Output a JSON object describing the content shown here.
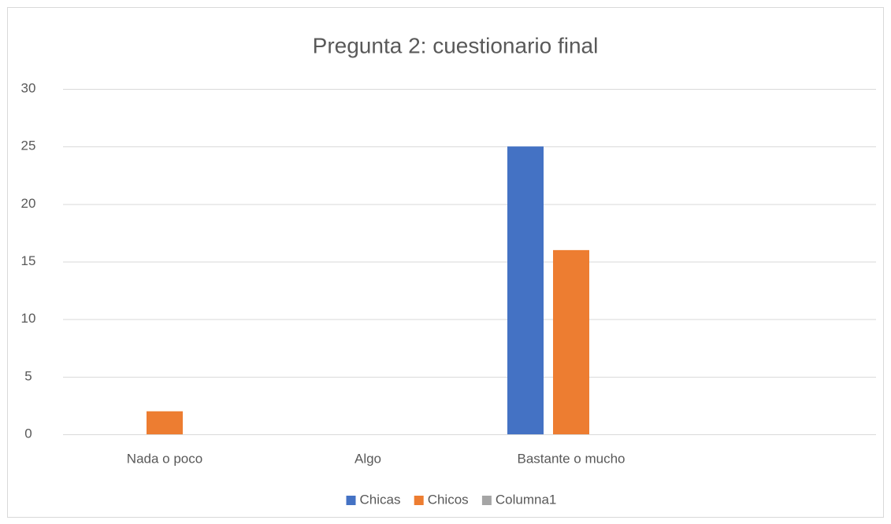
{
  "chart_data": {
    "type": "bar",
    "title": "Pregunta 2: cuestionario final",
    "categories": [
      "Nada o poco",
      "Algo",
      "Bastante o mucho",
      null
    ],
    "series": [
      {
        "name": "Chicas",
        "color": "#4472c4",
        "values": [
          0,
          0,
          25,
          null
        ]
      },
      {
        "name": "Chicos",
        "color": "#ed7d31",
        "values": [
          2,
          0,
          16,
          null
        ]
      },
      {
        "name": "Columna1",
        "color": "#a5a5a5",
        "values": [
          null,
          null,
          null,
          null
        ]
      }
    ],
    "ylim": [
      0,
      30
    ],
    "yticks": [
      0,
      5,
      10,
      15,
      20,
      25,
      30
    ],
    "grid": true,
    "legend": "bottom"
  }
}
